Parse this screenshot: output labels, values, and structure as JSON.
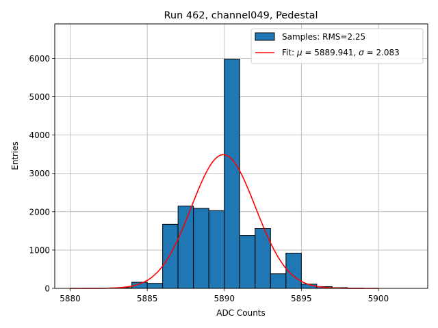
{
  "chart_data": {
    "type": "bar",
    "title": "Run 462, channel049, Pedestal",
    "xlabel": "ADC Counts",
    "ylabel": "Entries",
    "xlim": [
      5879.0,
      5903.2
    ],
    "ylim": [
      0,
      6900
    ],
    "grid": true,
    "legend_position": "top-right",
    "x_ticks": [
      5880,
      5885,
      5890,
      5895,
      5900
    ],
    "y_ticks": [
      0,
      1000,
      2000,
      3000,
      4000,
      5000,
      6000
    ],
    "bin_width": 1,
    "histogram": {
      "name": "Samples: RMS=2.25",
      "color": "#1f77b4",
      "edgecolor": "#000000",
      "bins": [
        {
          "x": 5882,
          "count": 8
        },
        {
          "x": 5883,
          "count": 18
        },
        {
          "x": 5884,
          "count": 160
        },
        {
          "x": 5885,
          "count": 130
        },
        {
          "x": 5886,
          "count": 1670
        },
        {
          "x": 5887,
          "count": 2150
        },
        {
          "x": 5888,
          "count": 2090
        },
        {
          "x": 5889,
          "count": 2030
        },
        {
          "x": 5890,
          "count": 5980
        },
        {
          "x": 5891,
          "count": 1380
        },
        {
          "x": 5892,
          "count": 1560
        },
        {
          "x": 5893,
          "count": 380
        },
        {
          "x": 5894,
          "count": 920
        },
        {
          "x": 5895,
          "count": 110
        },
        {
          "x": 5896,
          "count": 45
        },
        {
          "x": 5897,
          "count": 18
        },
        {
          "x": 5898,
          "count": 6
        }
      ]
    },
    "fit": {
      "name": "Fit: μ = 5889.941, σ = 2.083",
      "name_prefix": "Fit: ",
      "mu_symbol": "μ",
      "mu_text": " = 5889.941, ",
      "sigma_symbol": "σ",
      "sigma_text": " = 2.083",
      "color": "#ff0000",
      "mu": 5889.941,
      "sigma": 2.083,
      "amplitude": 3490,
      "x_range": [
        5880,
        5900
      ]
    }
  }
}
